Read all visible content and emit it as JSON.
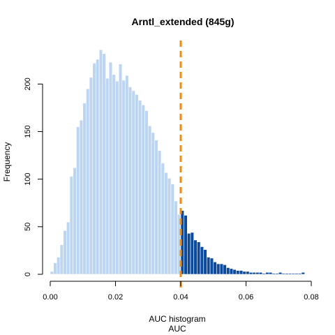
{
  "chart_data": {
    "type": "bar",
    "title": "Arntl_extended (845g)",
    "xlabel": "AUC histogram",
    "xlabel2": "AUC",
    "ylabel": "Frequency",
    "xlim": [
      0,
      0.08
    ],
    "ylim": [
      0,
      240
    ],
    "x_ticks": [
      "0.00",
      "0.02",
      "0.04",
      "0.06",
      "0.08"
    ],
    "x_tick_values": [
      0,
      0.02,
      0.04,
      0.06,
      0.08
    ],
    "y_ticks": [
      "0",
      "50",
      "100",
      "150",
      "200"
    ],
    "y_tick_values": [
      0,
      50,
      100,
      150,
      200
    ],
    "bin_width": 0.001,
    "bin_start": 0.0,
    "threshold": 0.04,
    "colors": {
      "below_threshold": "#bcd5f2",
      "above_threshold": "#0c4a9c",
      "threshold_line": "#f08a10"
    },
    "values": [
      3,
      12,
      18,
      31,
      46,
      55,
      103,
      112,
      155,
      162,
      180,
      195,
      207,
      222,
      226,
      236,
      232,
      206,
      223,
      210,
      203,
      221,
      204,
      209,
      197,
      193,
      189,
      183,
      178,
      172,
      156,
      149,
      141,
      130,
      117,
      107,
      101,
      95,
      77,
      63,
      67,
      62,
      43,
      44,
      36,
      34,
      29,
      26,
      18,
      17,
      13,
      11,
      11,
      10,
      7,
      6,
      5,
      4,
      4,
      3,
      3,
      2,
      2,
      2,
      2,
      1,
      2,
      2,
      1,
      1,
      2,
      1,
      1,
      1,
      1,
      1,
      1,
      2
    ]
  }
}
